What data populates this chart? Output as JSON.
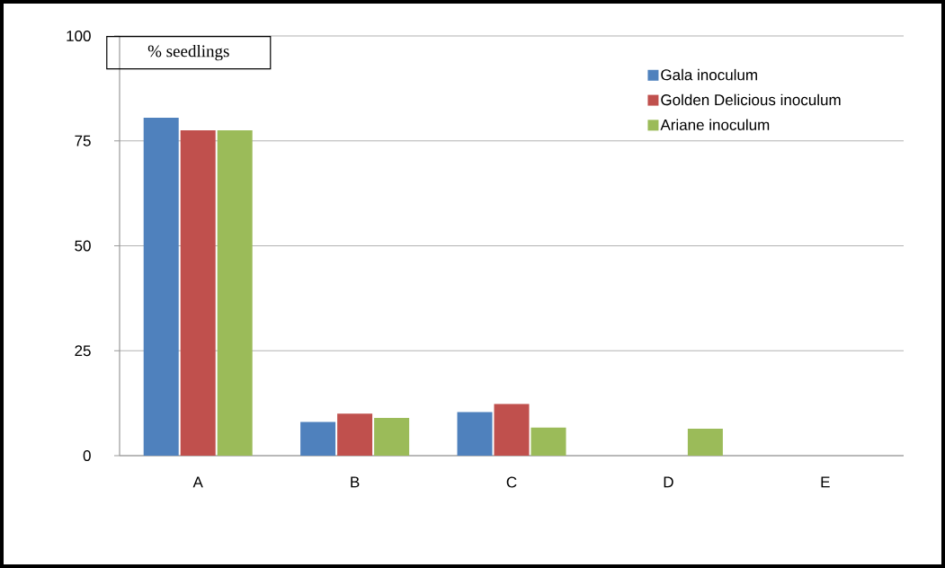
{
  "chart_data": {
    "type": "bar",
    "ylabel": "% seedlings",
    "categories": [
      "A",
      "B",
      "C",
      "D",
      "E"
    ],
    "series": [
      {
        "name": "Gala inoculum",
        "color": "#4f81bd",
        "values": [
          80.5,
          8,
          10.4,
          0,
          0
        ]
      },
      {
        "name": "Golden Delicious inoculum",
        "color": "#c0504d",
        "values": [
          77.5,
          10,
          12.3,
          0,
          0
        ]
      },
      {
        "name": "Ariane inoculum",
        "color": "#9bbb59",
        "values": [
          77.5,
          9,
          6.7,
          6.4,
          0
        ]
      }
    ],
    "ylim": [
      0,
      100
    ],
    "yticks": [
      0,
      25,
      50,
      75,
      100
    ],
    "grid": "y",
    "legend": "top right"
  }
}
